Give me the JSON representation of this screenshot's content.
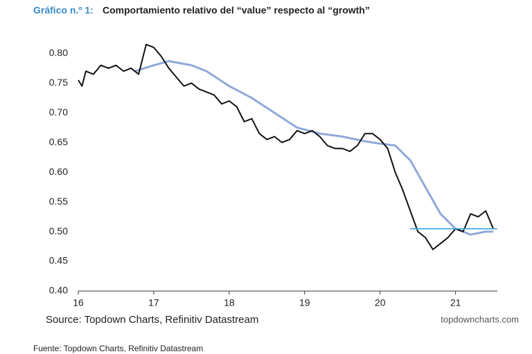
{
  "chart_data": {
    "type": "line",
    "title_prefix": "Gráfico n.º 1:",
    "title": "Comportamiento relativo del “value” respecto al “growth”",
    "source": "Source: Topdown Charts, Refinitiv Datastream",
    "brand": "topdowncharts.com",
    "footer": "Fuente: Topdown Charts, Refinitiv Datastream",
    "xlim": [
      16,
      21.6
    ],
    "xticks": [
      16,
      17,
      18,
      19,
      20,
      21
    ],
    "ylim": [
      0.4,
      0.82
    ],
    "yticks": [
      {
        "value": 0.4,
        "label": "0.40"
      },
      0.45,
      {
        "value": 0.5,
        "label": "0.50"
      },
      0.55,
      {
        "value": 0.6,
        "label": "0.60"
      },
      0.65,
      {
        "value": 0.7,
        "label": "0.70"
      },
      0.75,
      {
        "value": 0.8,
        "label": "0.80"
      }
    ],
    "series": [
      {
        "color": "#111111",
        "x": [
          16.0,
          16.05,
          16.1,
          16.2,
          16.3,
          16.4,
          16.5,
          16.6,
          16.7,
          16.8,
          16.85,
          16.9,
          17.0,
          17.1,
          17.2,
          17.3,
          17.4,
          17.5,
          17.6,
          17.7,
          17.8,
          17.9,
          18.0,
          18.1,
          18.2,
          18.3,
          18.4,
          18.5,
          18.6,
          18.7,
          18.8,
          18.9,
          19.0,
          19.1,
          19.2,
          19.3,
          19.4,
          19.5,
          19.6,
          19.7,
          19.8,
          19.9,
          20.0,
          20.1,
          20.2,
          20.3,
          20.4,
          20.5,
          20.6,
          20.7,
          20.8,
          20.9,
          21.0,
          21.1,
          21.2,
          21.3,
          21.4,
          21.5
        ],
        "values": [
          0.755,
          0.745,
          0.77,
          0.765,
          0.78,
          0.775,
          0.78,
          0.77,
          0.775,
          0.765,
          0.79,
          0.815,
          0.81,
          0.795,
          0.775,
          0.76,
          0.745,
          0.75,
          0.74,
          0.735,
          0.73,
          0.715,
          0.72,
          0.71,
          0.685,
          0.69,
          0.665,
          0.655,
          0.66,
          0.65,
          0.655,
          0.67,
          0.665,
          0.67,
          0.66,
          0.645,
          0.64,
          0.64,
          0.635,
          0.645,
          0.665,
          0.665,
          0.655,
          0.64,
          0.6,
          0.57,
          0.535,
          0.5,
          0.49,
          0.47,
          0.48,
          0.49,
          0.505,
          0.5,
          0.53,
          0.525,
          0.535,
          0.505
        ]
      },
      {
        "color": "#8ea9d8",
        "x": [
          16.75,
          17.0,
          17.2,
          17.5,
          17.7,
          18.0,
          18.3,
          18.6,
          18.9,
          19.2,
          19.5,
          19.8,
          20.0,
          20.2,
          20.4,
          20.6,
          20.8,
          21.0,
          21.2,
          21.4,
          21.5
        ],
        "values": [
          0.77,
          0.78,
          0.787,
          0.78,
          0.77,
          0.745,
          0.725,
          0.7,
          0.675,
          0.665,
          0.66,
          0.652,
          0.648,
          0.645,
          0.62,
          0.575,
          0.53,
          0.505,
          0.495,
          0.5,
          0.5
        ]
      },
      {
        "color": "#4aaee0",
        "x": [
          20.4,
          21.55
        ],
        "values": [
          0.505,
          0.505
        ]
      }
    ]
  }
}
